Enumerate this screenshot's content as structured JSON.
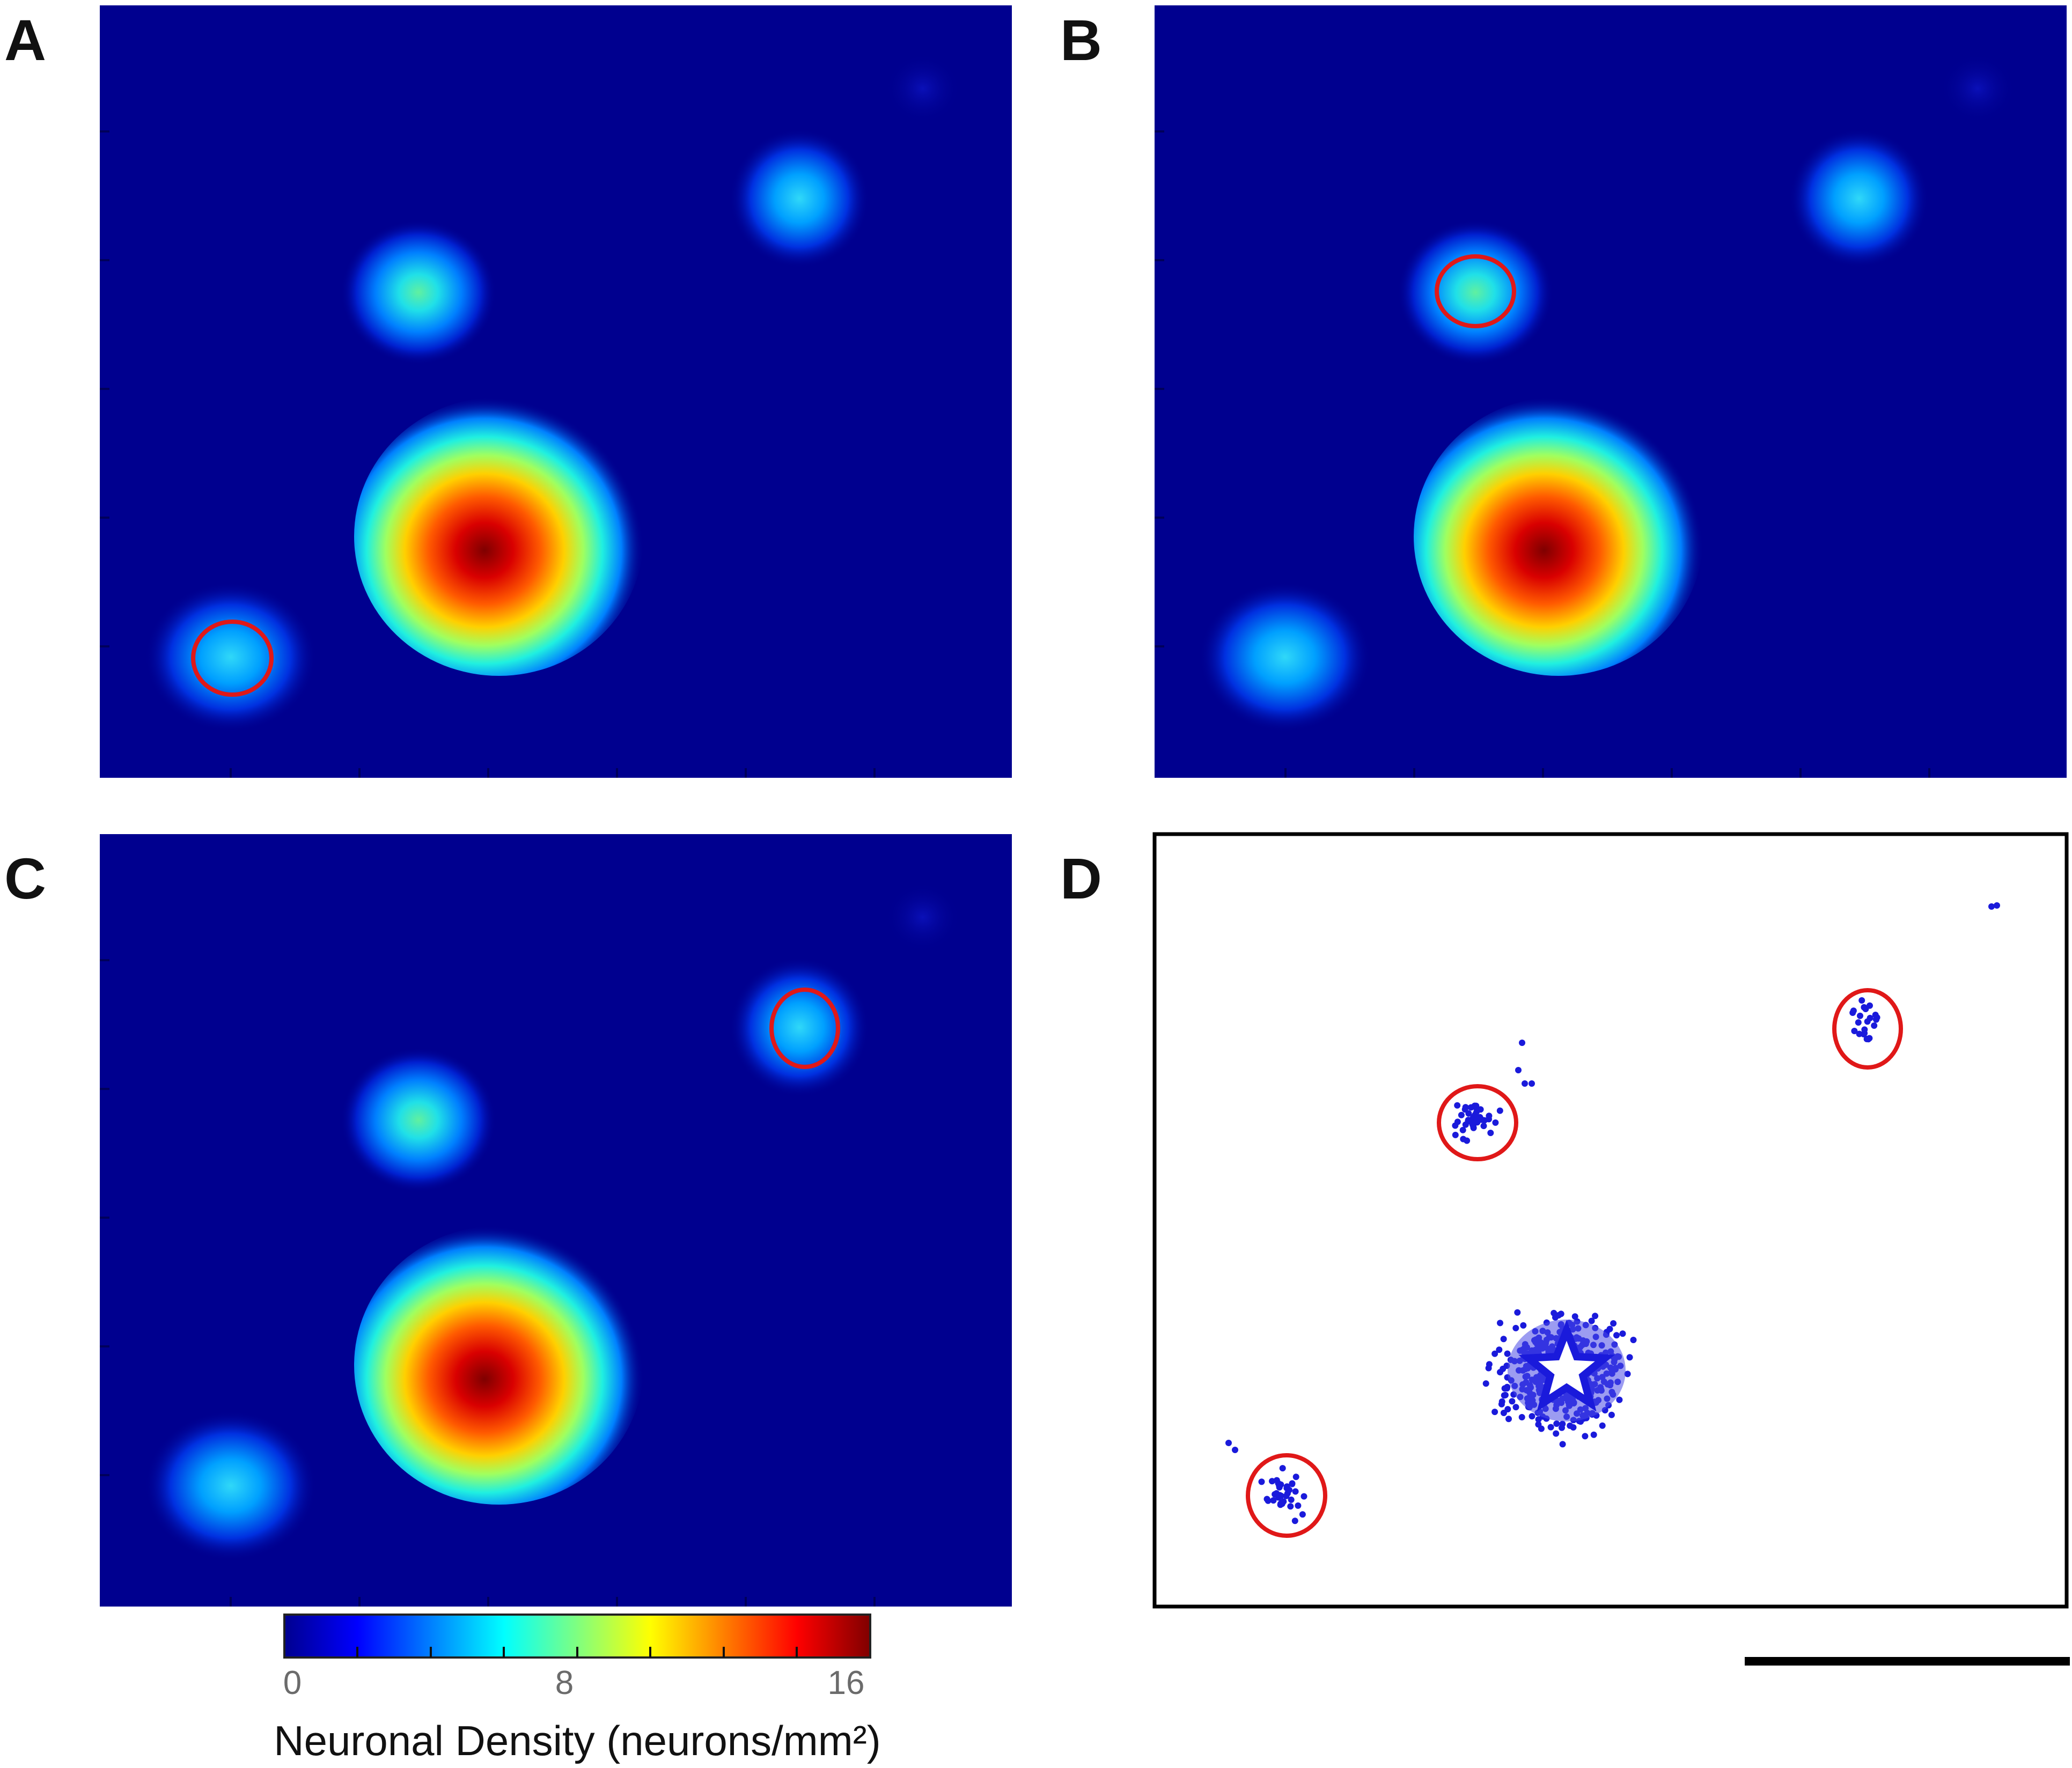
{
  "chart_data": [
    {
      "type": "heatmap",
      "panel": "A",
      "description_colormap": "jet",
      "highlighted_cluster": "bottom-left"
    },
    {
      "type": "heatmap",
      "panel": "B",
      "description_colormap": "jet",
      "highlighted_cluster": "upper-middle"
    },
    {
      "type": "heatmap",
      "panel": "C",
      "description_colormap": "jet",
      "highlighted_cluster": "upper-right"
    },
    {
      "type": "scatter",
      "panel": "D",
      "marker_color": "#1a1adb",
      "highlight_color": "#e01818",
      "center_marker": "star"
    }
  ],
  "panels": {
    "labels": [
      "A",
      "B",
      "C",
      "D"
    ]
  },
  "colorbar": {
    "title": "Neuronal Density (neurons/mm²)",
    "tick_labels": [
      "0",
      "8",
      "16"
    ],
    "range": [
      0,
      16
    ]
  },
  "colors": {
    "background": "#00008f",
    "highlight": "#e01818",
    "points": "#1a1adb",
    "scalebar": "#000000"
  }
}
